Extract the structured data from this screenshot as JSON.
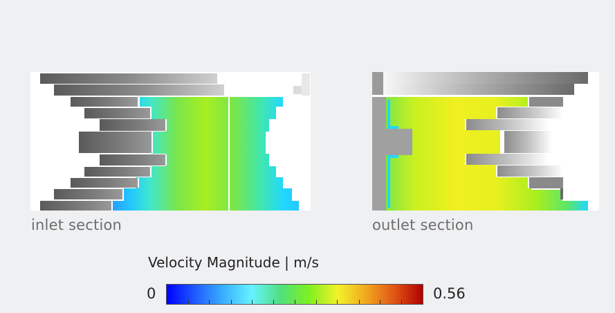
{
  "sections": {
    "inlet": {
      "label": "inlet section"
    },
    "outlet": {
      "label": "outlet section"
    }
  },
  "legend": {
    "title": "Velocity Magnitude | m/s",
    "min_label": "0",
    "max_label": "0.56",
    "min": 0,
    "max": 0.56,
    "colormap": [
      "#0000ff",
      "#1f5cff",
      "#3ab0ff",
      "#66f2ff",
      "#4fe07f",
      "#7ff020",
      "#f2f22a",
      "#f2a81e",
      "#e05515",
      "#b00000"
    ]
  },
  "colors": {
    "background": "#eff0f2",
    "geometry_gray": "#7a7a7a",
    "label_text": "#6d6d6d"
  }
}
